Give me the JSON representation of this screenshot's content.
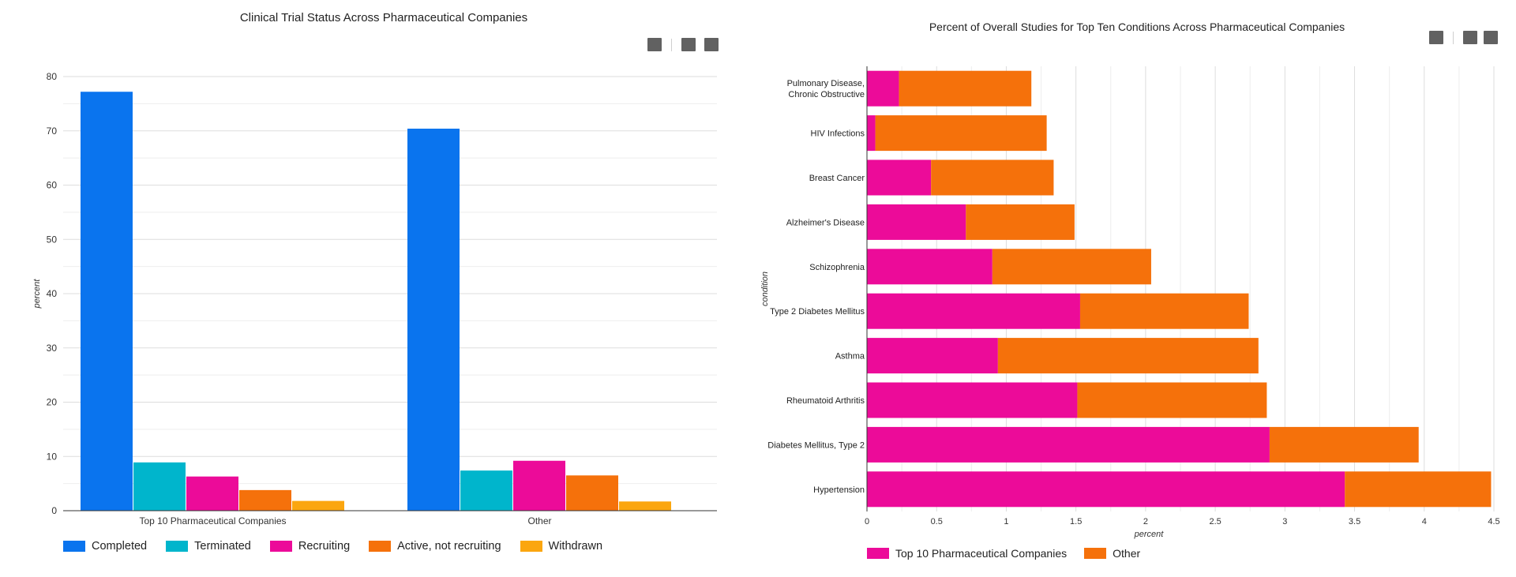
{
  "toolbar_icons": [
    "square-icon",
    "square-icon",
    "square-icon"
  ],
  "chart_data": [
    {
      "type": "bar",
      "title": "Clinical Trial Status Across Pharmaceutical Companies",
      "ylabel": "percent",
      "xlabel": "",
      "categories": [
        "Top 10 Pharmaceutical Companies",
        "Other"
      ],
      "series": [
        {
          "name": "Completed",
          "color": "#0a74ee",
          "values": [
            77.2,
            70.4
          ]
        },
        {
          "name": "Terminated",
          "color": "#00b5cc",
          "values": [
            8.9,
            7.4
          ]
        },
        {
          "name": "Recruiting",
          "color": "#ec0b99",
          "values": [
            6.3,
            9.2
          ]
        },
        {
          "name": "Active, not recruiting",
          "color": "#f5710b",
          "values": [
            3.8,
            6.5
          ]
        },
        {
          "name": "Withdrawn",
          "color": "#fba60f",
          "values": [
            1.8,
            1.7
          ]
        }
      ],
      "ylim": [
        0,
        80
      ],
      "yticks": [
        "0",
        "10",
        "20",
        "30",
        "40",
        "50",
        "60",
        "70",
        "80"
      ],
      "grid": true,
      "legend": "bottom-left"
    },
    {
      "type": "bar",
      "orientation": "horizontal",
      "stacked": true,
      "title": "Percent of Overall Studies for Top Ten Conditions Across Pharmaceutical Companies",
      "xlabel": "percent",
      "ylabel": "condition",
      "categories": [
        [
          "Pulmonary Disease,",
          "Chronic Obstructive"
        ],
        [
          "HIV Infections"
        ],
        [
          "Breast Cancer"
        ],
        [
          "Alzheimer's Disease"
        ],
        [
          "Schizophrenia"
        ],
        [
          "Type 2 Diabetes Mellitus"
        ],
        [
          "Asthma"
        ],
        [
          "Rheumatoid Arthritis"
        ],
        [
          "Diabetes Mellitus, Type 2"
        ],
        [
          "Hypertension"
        ]
      ],
      "series": [
        {
          "name": "Top 10 Pharmaceutical Companies",
          "color": "#ec0b99",
          "values": [
            0.23,
            0.06,
            0.46,
            0.71,
            0.9,
            1.53,
            0.94,
            1.51,
            2.89,
            3.43
          ]
        },
        {
          "name": "Other",
          "color": "#f5710b",
          "values": [
            0.95,
            1.23,
            0.88,
            0.78,
            1.14,
            1.21,
            1.87,
            1.36,
            1.07,
            1.05
          ]
        }
      ],
      "xlim": [
        0,
        4.5
      ],
      "xticks": [
        "0",
        "0.5",
        "1",
        "1.5",
        "2",
        "2.5",
        "3",
        "3.5",
        "4",
        "4.5"
      ],
      "grid": true,
      "legend": "bottom-left"
    }
  ]
}
